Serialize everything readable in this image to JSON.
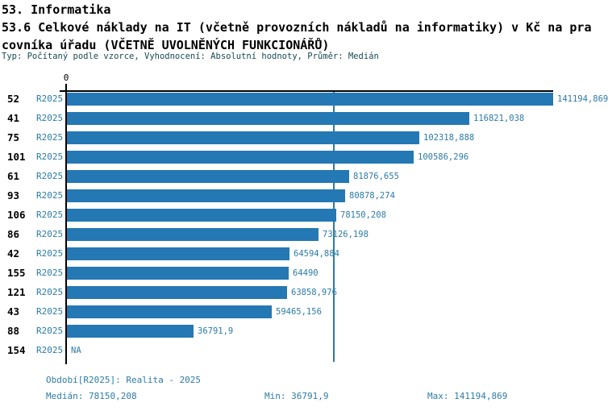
{
  "header": {
    "title": "53. Informatika",
    "subtitle_line1": "53.6 Celkové náklady na IT (včetně provozních nákladů na informatiky) v Kč na pra",
    "subtitle_line2": "covníka úřadu (VČETNĚ UVOLNĚNÝCH FUNKCIONÁŘŮ)",
    "meta": "Typ: Počítaný podle vzorce, Vyhodnocení: Absolutní hodnoty, Průměr: Medián"
  },
  "chart_data": {
    "type": "bar",
    "orientation": "horizontal",
    "axis_zero_label": "0",
    "xlim": [
      0,
      141194.869
    ],
    "median_value": 78150.208,
    "median_line": true,
    "na_label": "NA",
    "categories": [
      "52",
      "41",
      "75",
      "101",
      "61",
      "93",
      "106",
      "86",
      "42",
      "155",
      "121",
      "43",
      "88",
      "154"
    ],
    "series": [
      {
        "name": "R2025",
        "values": [
          141194.869,
          116821.038,
          102318.888,
          100586.296,
          81876.655,
          80878.274,
          78150.208,
          73126.198,
          64594.884,
          64490,
          63858.976,
          59465.156,
          36791.9,
          null
        ],
        "value_labels": [
          "141194,869",
          "116821,038",
          "102318,888",
          "100586,296",
          "81876,655",
          "80878,274",
          "78150,208",
          "73126,198",
          "64594,884",
          "64490",
          "63858,976",
          "59465,156",
          "36791,9",
          "NA"
        ]
      }
    ]
  },
  "footer": {
    "period": "Období[R2025]: Realita - 2025",
    "median": "Medián: 78150,208",
    "min": "Min: 36791,9",
    "max": "Max: 141194,869"
  },
  "colors": {
    "bar": "#2478b4",
    "accent_text": "#2b7ba6",
    "meta_text": "#174a56",
    "axis": "#000000",
    "median_line": "#2b7ba6"
  }
}
